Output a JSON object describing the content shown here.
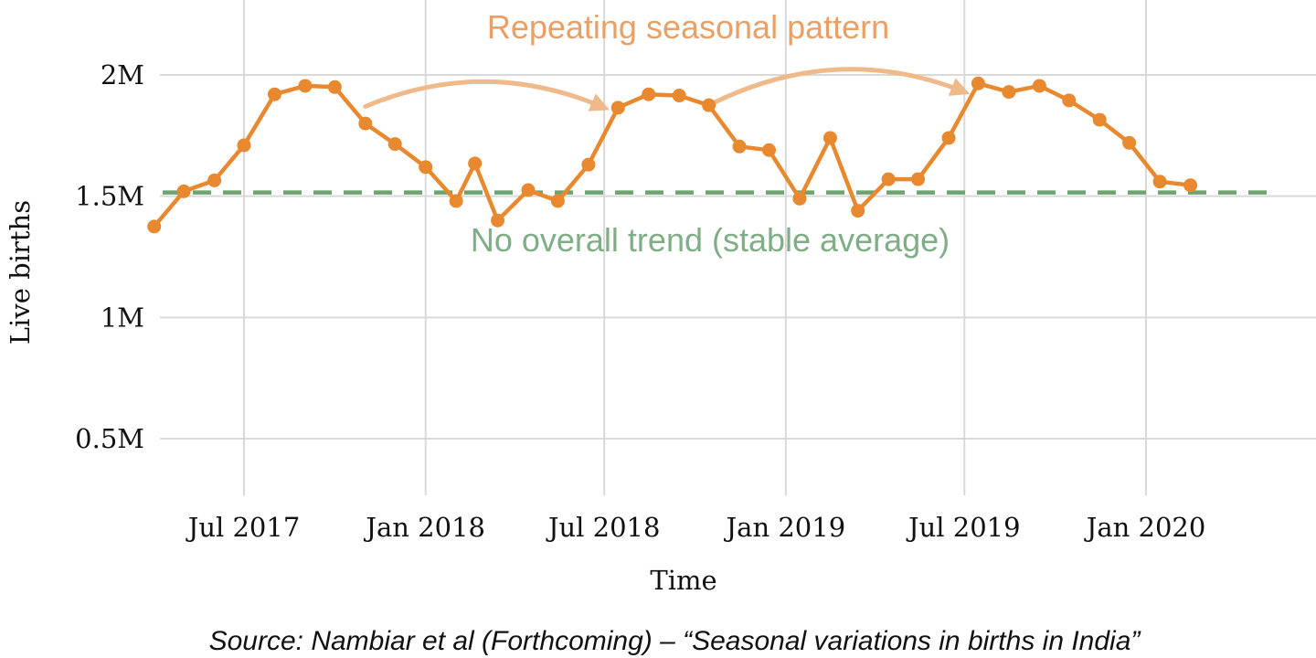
{
  "chart_data": {
    "type": "line",
    "xlabel": "Time",
    "ylabel": "Live births",
    "x_ticks": [
      "Jul 2017",
      "Jan 2018",
      "Jul 2018",
      "Jan 2019",
      "Jul 2019",
      "Jan 2020"
    ],
    "y_ticks": [
      "0.5M",
      "1M",
      "1.5M",
      "2M"
    ],
    "y_tick_values": [
      500000,
      1000000,
      1500000,
      2000000
    ],
    "ylim": [
      300000,
      2100000
    ],
    "xlim": [
      "2017-03-27",
      "2020-07-31"
    ],
    "grid": true,
    "series": [
      {
        "points": [
          {
            "x": "2017-04-01",
            "y": 1375000
          },
          {
            "x": "2017-05-01",
            "y": 1520000
          },
          {
            "x": "2017-06-01",
            "y": 1565000
          },
          {
            "x": "2017-07-01",
            "y": 1710000
          },
          {
            "x": "2017-08-01",
            "y": 1920000
          },
          {
            "x": "2017-09-01",
            "y": 1955000
          },
          {
            "x": "2017-10-01",
            "y": 1950000
          },
          {
            "x": "2017-11-01",
            "y": 1800000
          },
          {
            "x": "2017-12-01",
            "y": 1715000
          },
          {
            "x": "2018-01-01",
            "y": 1620000
          },
          {
            "x": "2018-02-01",
            "y": 1480000
          },
          {
            "x": "2018-02-20",
            "y": 1635000
          },
          {
            "x": "2018-03-15",
            "y": 1400000
          },
          {
            "x": "2018-04-15",
            "y": 1525000
          },
          {
            "x": "2018-05-15",
            "y": 1480000
          },
          {
            "x": "2018-06-15",
            "y": 1630000
          },
          {
            "x": "2018-07-15",
            "y": 1865000
          },
          {
            "x": "2018-08-15",
            "y": 1920000
          },
          {
            "x": "2018-09-15",
            "y": 1915000
          },
          {
            "x": "2018-10-15",
            "y": 1875000
          },
          {
            "x": "2018-11-15",
            "y": 1705000
          },
          {
            "x": "2018-12-15",
            "y": 1690000
          },
          {
            "x": "2019-01-15",
            "y": 1490000
          },
          {
            "x": "2019-02-15",
            "y": 1740000
          },
          {
            "x": "2019-03-15",
            "y": 1440000
          },
          {
            "x": "2019-04-15",
            "y": 1570000
          },
          {
            "x": "2019-05-15",
            "y": 1570000
          },
          {
            "x": "2019-06-15",
            "y": 1740000
          },
          {
            "x": "2019-07-15",
            "y": 1965000
          },
          {
            "x": "2019-08-15",
            "y": 1930000
          },
          {
            "x": "2019-09-15",
            "y": 1955000
          },
          {
            "x": "2019-10-15",
            "y": 1895000
          },
          {
            "x": "2019-11-15",
            "y": 1815000
          },
          {
            "x": "2019-12-15",
            "y": 1720000
          },
          {
            "x": "2020-01-15",
            "y": 1560000
          },
          {
            "x": "2020-02-15",
            "y": 1545000
          }
        ],
        "color": "#e8892f",
        "marker": "circle"
      }
    ],
    "reference_line": {
      "y": 1515000,
      "style": "dashed",
      "color": "#6ca36f"
    },
    "annotations": [
      {
        "text": "Repeating seasonal pattern",
        "color": "#e9a066"
      },
      {
        "text": "No overall trend (stable average)",
        "color": "#7fae86"
      }
    ],
    "arrows": [
      {
        "from": {
          "x": "2017-11-01",
          "y": 1870000
        },
        "to": {
          "x": "2018-07-01",
          "y": 1865000
        },
        "color": "#f0b98a"
      },
      {
        "from": {
          "x": "2018-10-20",
          "y": 1885000
        },
        "to": {
          "x": "2019-07-01",
          "y": 1930000
        },
        "color": "#f0b98a"
      }
    ]
  },
  "source": "Source: Nambiar et al (Forthcoming) – “Seasonal variations in births in India”"
}
